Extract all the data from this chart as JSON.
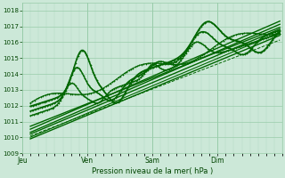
{
  "xlabel": "Pression niveau de la mer( hPa )",
  "ylim": [
    1009,
    1018.5
  ],
  "xlim": [
    0,
    96
  ],
  "yticks": [
    1009,
    1010,
    1011,
    1012,
    1013,
    1014,
    1015,
    1016,
    1017,
    1018
  ],
  "day_ticks": [
    0,
    24,
    48,
    72
  ],
  "day_labels": [
    "Jeu",
    "Ven",
    "Sam",
    "Dim"
  ],
  "background_color": "#cce8d8",
  "grid_color_minor": "#b0d8c0",
  "grid_color_major": "#99ccaa",
  "line_color": "#006600",
  "text_color": "#004400"
}
